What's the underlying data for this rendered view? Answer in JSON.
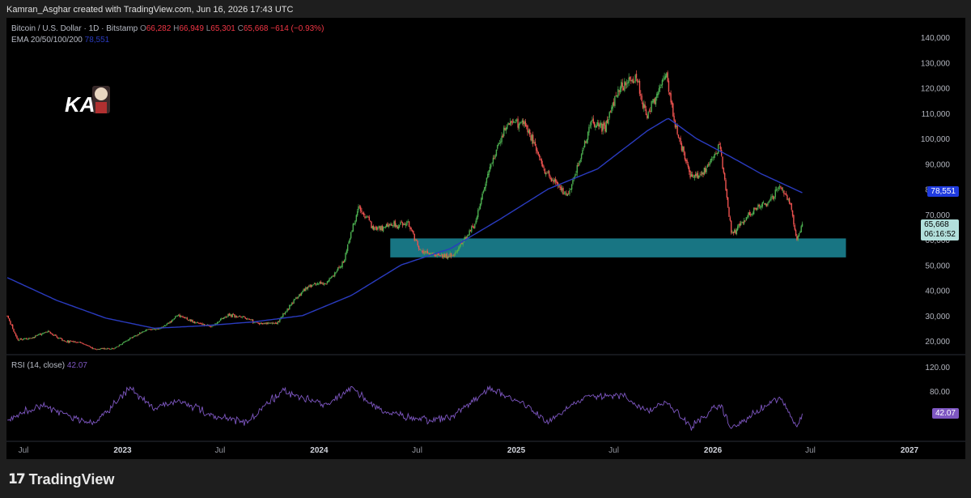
{
  "credit": "Kamran_Asghar created with TradingView.com, Jun 16, 2026 17:43 UTC",
  "legend": {
    "symbol": "Bitcoin / U.S. Dollar · 1D · Bitstamp",
    "o_label": "O",
    "o_value": "66,282",
    "h_label": "H",
    "h_value": "66,949",
    "l_label": "L",
    "l_value": "65,301",
    "c_label": "C",
    "c_value": "65,668",
    "change": "−614 (−0.93%)",
    "ema_label": "EMA 20/50/100/200",
    "ema_value": "78,551"
  },
  "rsi_legend": {
    "label": "RSI (14, close)",
    "value": "42.07"
  },
  "tags": {
    "ema": "78,551",
    "price": "65,668",
    "countdown": "06:16:52",
    "rsi": "42.07"
  },
  "logo_text": "KA",
  "brand": "TradingView",
  "colors": {
    "up": "#26a69a",
    "up_bright": "#4caf50",
    "down": "#ef5350",
    "ema": "#2a3bbf",
    "rsi": "#7e57c2",
    "zone": "#1a7f8e",
    "background": "#000000"
  },
  "chart_data": [
    {
      "type": "candlestick",
      "title": "Bitcoin / U.S. Dollar · 1D · Bitstamp",
      "y_axis_ticks": [
        "140,000",
        "130,000",
        "120,000",
        "110,000",
        "100,000",
        "90,000",
        "80,000",
        "70,000",
        "60,000",
        "50,000",
        "40,000",
        "30,000",
        "20,000"
      ],
      "x_axis_ticks": [
        "Jul",
        "2023",
        "Jul",
        "2024",
        "Jul",
        "2025",
        "Jul",
        "2026",
        "Jul",
        "2027"
      ],
      "ylim": [
        15000,
        145000
      ],
      "series": [
        {
          "name": "BTC/USD close (approx.)",
          "points": [
            [
              "2022-06-01",
              29800
            ],
            [
              "2022-06-20",
              20500
            ],
            [
              "2022-07-15",
              21000
            ],
            [
              "2022-08-15",
              23800
            ],
            [
              "2022-09-15",
              19800
            ],
            [
              "2022-10-15",
              19400
            ],
            [
              "2022-11-09",
              16800
            ],
            [
              "2022-12-15",
              16900
            ],
            [
              "2023-01-15",
              21000
            ],
            [
              "2023-02-15",
              24500
            ],
            [
              "2023-03-15",
              25000
            ],
            [
              "2023-04-15",
              30300
            ],
            [
              "2023-05-15",
              27200
            ],
            [
              "2023-06-15",
              25600
            ],
            [
              "2023-07-15",
              30300
            ],
            [
              "2023-08-15",
              29200
            ],
            [
              "2023-09-15",
              26600
            ],
            [
              "2023-10-15",
              27000
            ],
            [
              "2023-11-15",
              36000
            ],
            [
              "2023-12-15",
              42000
            ],
            [
              "2024-01-15",
              43000
            ],
            [
              "2024-02-15",
              51000
            ],
            [
              "2024-03-14",
              73000
            ],
            [
              "2024-04-15",
              64000
            ],
            [
              "2024-05-15",
              66000
            ],
            [
              "2024-06-15",
              66000
            ],
            [
              "2024-07-05",
              56000
            ],
            [
              "2024-08-05",
              54000
            ],
            [
              "2024-09-06",
              53500
            ],
            [
              "2024-10-15",
              66000
            ],
            [
              "2024-11-12",
              88000
            ],
            [
              "2024-12-17",
              107000
            ],
            [
              "2025-01-20",
              105000
            ],
            [
              "2025-02-25",
              86000
            ],
            [
              "2025-04-07",
              77000
            ],
            [
              "2025-05-20",
              106000
            ],
            [
              "2025-06-15",
              105000
            ],
            [
              "2025-07-14",
              121000
            ],
            [
              "2025-08-14",
              123000
            ],
            [
              "2025-09-01",
              108000
            ],
            [
              "2025-10-06",
              125500
            ],
            [
              "2025-10-20",
              108000
            ],
            [
              "2025-11-21",
              84000
            ],
            [
              "2025-12-15",
              87000
            ],
            [
              "2026-01-14",
              97000
            ],
            [
              "2026-02-05",
              62000
            ],
            [
              "2026-03-01",
              68000
            ],
            [
              "2026-03-15",
              71000
            ],
            [
              "2026-04-10",
              74000
            ],
            [
              "2026-05-05",
              81500
            ],
            [
              "2026-05-25",
              74000
            ],
            [
              "2026-06-05",
              60000
            ],
            [
              "2026-06-16",
              65668
            ]
          ]
        },
        {
          "name": "EMA 200",
          "points": [
            [
              "2022-06-01",
              45000
            ],
            [
              "2022-09-01",
              36000
            ],
            [
              "2022-12-01",
              29000
            ],
            [
              "2023-03-01",
              25000
            ],
            [
              "2023-06-01",
              26000
            ],
            [
              "2023-09-01",
              27500
            ],
            [
              "2023-12-01",
              30000
            ],
            [
              "2024-03-01",
              38000
            ],
            [
              "2024-06-01",
              50000
            ],
            [
              "2024-09-01",
              56500
            ],
            [
              "2024-12-01",
              68000
            ],
            [
              "2025-03-01",
              80000
            ],
            [
              "2025-06-01",
              88000
            ],
            [
              "2025-09-01",
              103000
            ],
            [
              "2025-10-10",
              108000
            ],
            [
              "2025-12-01",
              100000
            ],
            [
              "2026-02-01",
              93000
            ],
            [
              "2026-04-01",
              86000
            ],
            [
              "2026-06-16",
              78551
            ]
          ]
        }
      ],
      "annotations": [
        {
          "type": "zone",
          "from": "2024-05-12",
          "to": "2026-09-05",
          "low": 53000,
          "high": 60500
        }
      ]
    },
    {
      "type": "line",
      "title": "RSI (14, close)",
      "y_axis_ticks": [
        "120.00",
        "80.00"
      ],
      "ylim": [
        0,
        140
      ],
      "series": [
        {
          "name": "RSI",
          "points": [
            [
              "2022-06-01",
              30
            ],
            [
              "2022-08-01",
              58
            ],
            [
              "2022-11-09",
              25
            ],
            [
              "2023-01-15",
              85
            ],
            [
              "2023-03-01",
              50
            ],
            [
              "2023-04-15",
              65
            ],
            [
              "2023-06-15",
              40
            ],
            [
              "2023-08-20",
              28
            ],
            [
              "2023-10-25",
              82
            ],
            [
              "2024-01-15",
              55
            ],
            [
              "2024-03-01",
              85
            ],
            [
              "2024-05-01",
              45
            ],
            [
              "2024-07-05",
              35
            ],
            [
              "2024-08-05",
              32
            ],
            [
              "2024-09-06",
              40
            ],
            [
              "2024-11-12",
              84
            ],
            [
              "2025-01-15",
              60
            ],
            [
              "2025-03-01",
              30
            ],
            [
              "2025-05-15",
              72
            ],
            [
              "2025-07-14",
              74
            ],
            [
              "2025-09-01",
              45
            ],
            [
              "2025-10-06",
              62
            ],
            [
              "2025-11-21",
              22
            ],
            [
              "2026-01-14",
              58
            ],
            [
              "2026-02-05",
              18
            ],
            [
              "2026-05-05",
              70
            ],
            [
              "2026-06-05",
              22
            ],
            [
              "2026-06-16",
              42.07
            ]
          ]
        }
      ]
    }
  ]
}
